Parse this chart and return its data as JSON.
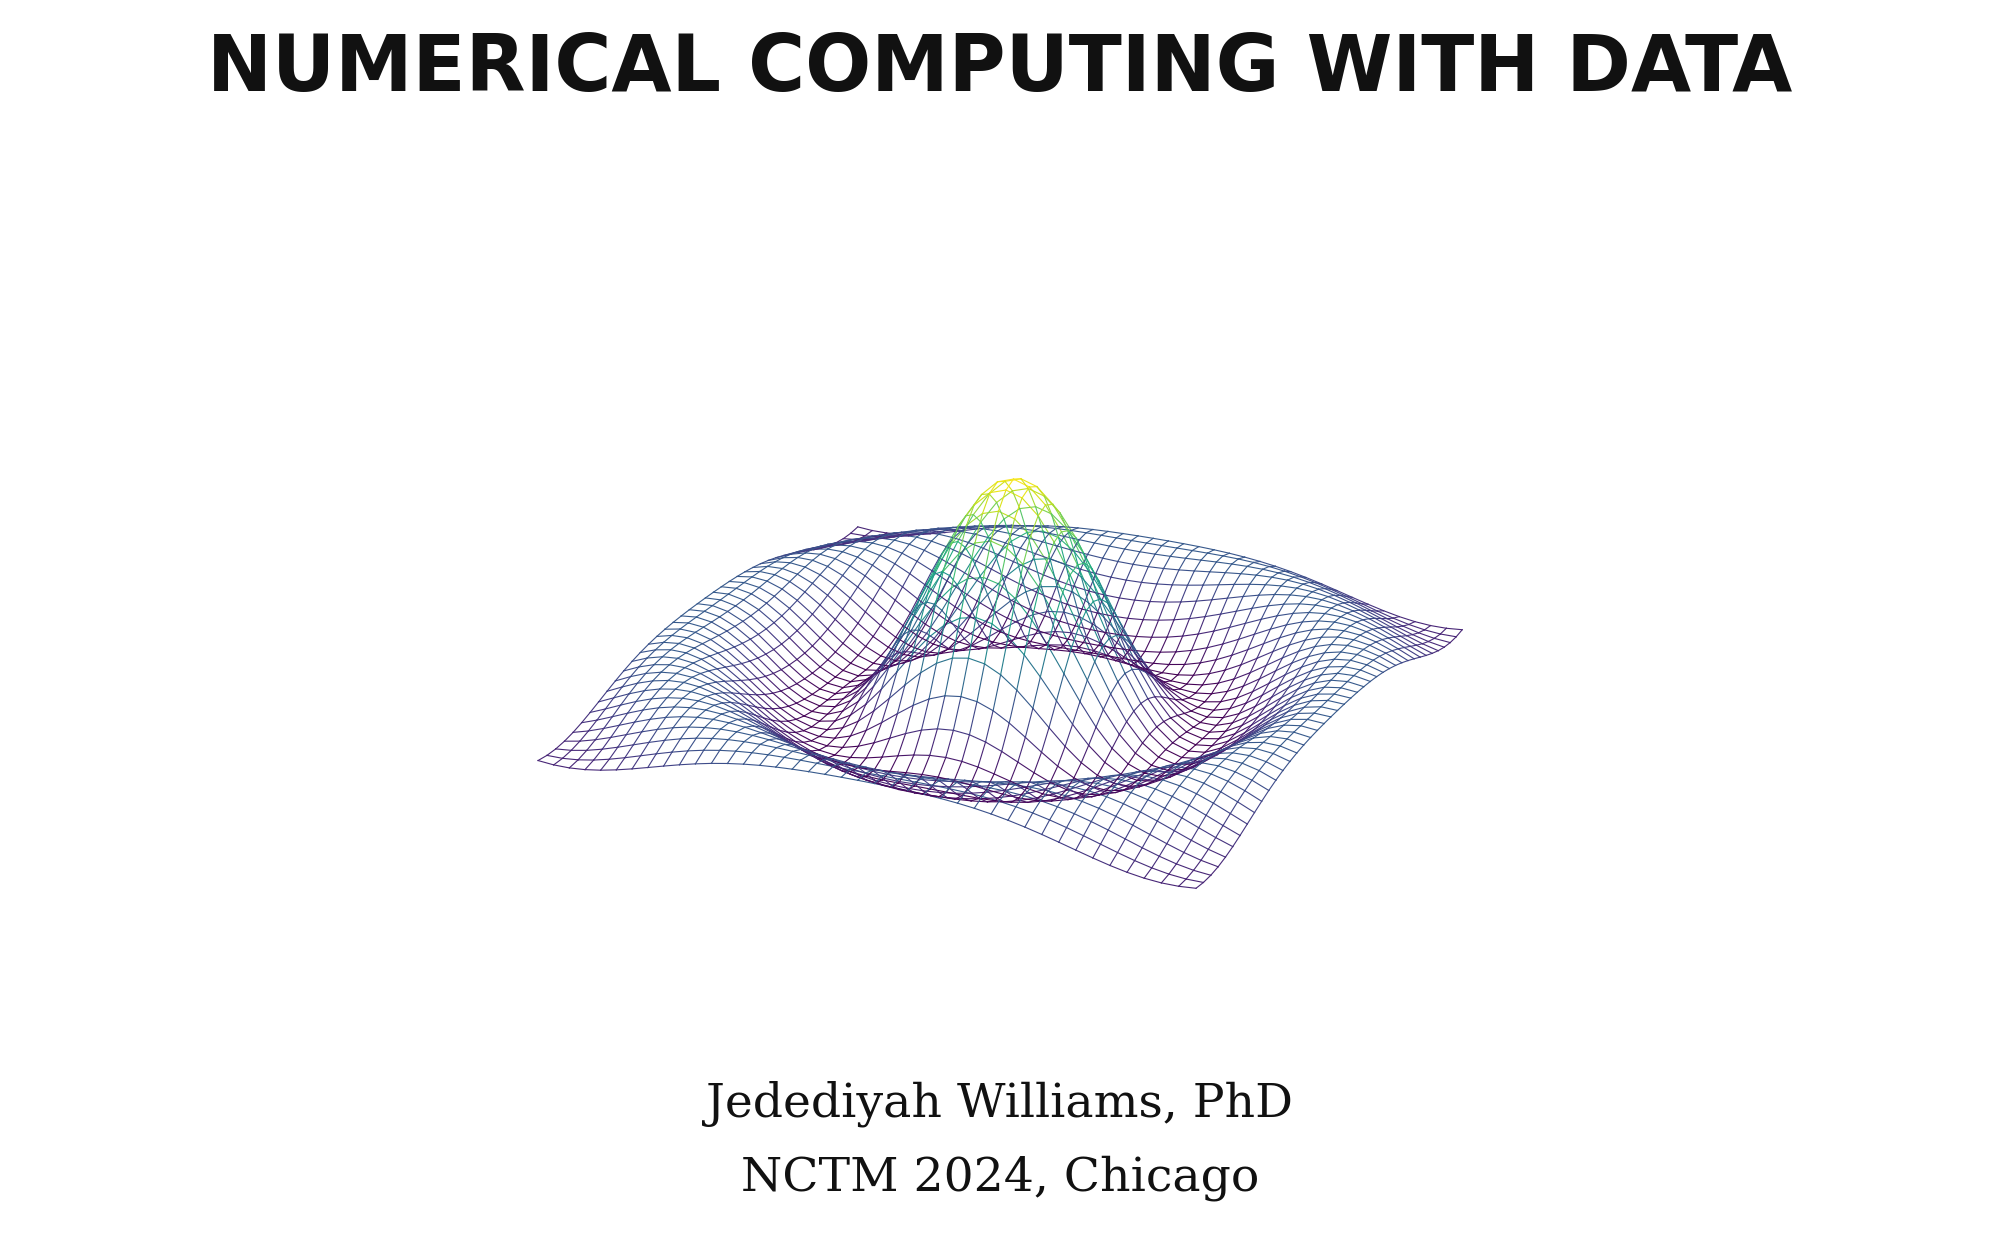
{
  "title": "NUMERICAL COMPUTING WITH DATA",
  "title_fontsize": 56,
  "title_fontweight": "bold",
  "title_color": "#111111",
  "subtitle_line1": "Jedediyah Williams, PhD",
  "subtitle_line2": "NCTM 2024, Chicago",
  "subtitle_fontsize": 34,
  "subtitle_color": "#111111",
  "background_color": "#ffffff",
  "plot3d_elev": 22,
  "plot3d_azim": -65,
  "colormap": "viridis",
  "wireframe_linewidth": 0.8,
  "n_points": 41,
  "x_range": [
    -8,
    8
  ],
  "y_range": [
    -8,
    8
  ]
}
